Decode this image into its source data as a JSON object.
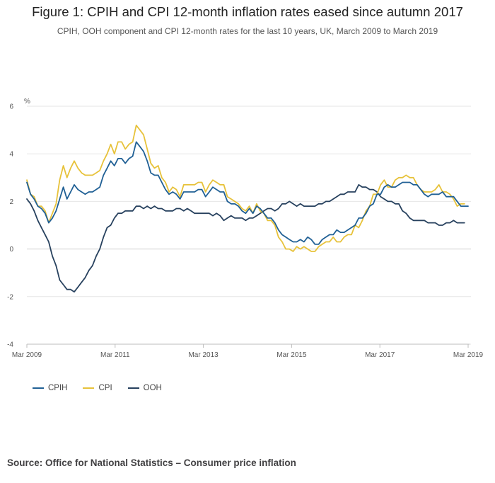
{
  "colors": {
    "CPIH": "#206095",
    "CPI": "#e7c23a",
    "OOH": "#27415e"
  },
  "chart_data": {
    "type": "line",
    "title": "Figure 1: CPIH and CPI 12-month inflation rates eased since autumn 2017",
    "subtitle": "CPIH, OOH component and CPI 12-month rates for the last 10 years, UK, March 2009 to March 2019",
    "ylabel": "%",
    "xlabel": "",
    "ylim": [
      -4,
      6
    ],
    "yticks": [
      -4,
      -2,
      0,
      2,
      4,
      6
    ],
    "xticks": [
      "Mar 2009",
      "Mar 2011",
      "Mar 2013",
      "Mar 2015",
      "Mar 2017",
      "Mar 2019"
    ],
    "x_start": "Mar 2009",
    "x_end": "Mar 2019",
    "legend_position": "bottom-left",
    "series": [
      {
        "name": "CPIH",
        "values": [
          2.8,
          2.3,
          2.1,
          1.8,
          1.7,
          1.5,
          1.1,
          1.3,
          1.6,
          2.1,
          2.6,
          2.1,
          2.4,
          2.7,
          2.5,
          2.4,
          2.3,
          2.4,
          2.4,
          2.5,
          2.6,
          3.1,
          3.4,
          3.7,
          3.5,
          3.8,
          3.8,
          3.6,
          3.8,
          3.9,
          4.5,
          4.3,
          4.1,
          3.7,
          3.2,
          3.1,
          3.1,
          2.8,
          2.5,
          2.3,
          2.4,
          2.3,
          2.1,
          2.4,
          2.4,
          2.4,
          2.4,
          2.5,
          2.5,
          2.2,
          2.4,
          2.6,
          2.5,
          2.4,
          2.4,
          2.0,
          1.9,
          1.9,
          1.8,
          1.6,
          1.5,
          1.7,
          1.5,
          1.8,
          1.7,
          1.5,
          1.3,
          1.3,
          1.1,
          0.8,
          0.6,
          0.5,
          0.4,
          0.3,
          0.3,
          0.4,
          0.3,
          0.5,
          0.4,
          0.2,
          0.2,
          0.4,
          0.5,
          0.6,
          0.6,
          0.8,
          0.7,
          0.7,
          0.8,
          0.9,
          1.0,
          1.3,
          1.3,
          1.5,
          1.8,
          1.9,
          2.3,
          2.3,
          2.6,
          2.7,
          2.6,
          2.6,
          2.7,
          2.8,
          2.8,
          2.8,
          2.7,
          2.7,
          2.5,
          2.3,
          2.2,
          2.3,
          2.3,
          2.3,
          2.4,
          2.2,
          2.2,
          2.2,
          2.0,
          1.8,
          1.8,
          1.8
        ]
      },
      {
        "name": "CPI",
        "values": [
          2.9,
          2.3,
          2.2,
          1.8,
          1.8,
          1.6,
          1.1,
          1.5,
          1.9,
          2.9,
          3.5,
          3.0,
          3.4,
          3.7,
          3.4,
          3.2,
          3.1,
          3.1,
          3.1,
          3.2,
          3.3,
          3.7,
          4.0,
          4.4,
          4.0,
          4.5,
          4.5,
          4.2,
          4.4,
          4.5,
          5.2,
          5.0,
          4.8,
          4.2,
          3.6,
          3.4,
          3.5,
          3.0,
          2.8,
          2.4,
          2.6,
          2.5,
          2.2,
          2.7,
          2.7,
          2.7,
          2.7,
          2.8,
          2.8,
          2.4,
          2.7,
          2.9,
          2.8,
          2.7,
          2.7,
          2.2,
          2.1,
          2.0,
          1.9,
          1.7,
          1.6,
          1.8,
          1.5,
          1.9,
          1.6,
          1.5,
          1.2,
          1.2,
          1.0,
          0.5,
          0.3,
          0.0,
          0.0,
          -0.1,
          0.1,
          0.0,
          0.1,
          0.0,
          -0.1,
          -0.1,
          0.1,
          0.2,
          0.3,
          0.3,
          0.5,
          0.3,
          0.3,
          0.5,
          0.6,
          0.6,
          1.0,
          0.9,
          1.2,
          1.6,
          1.8,
          2.3,
          2.3,
          2.7,
          2.9,
          2.6,
          2.6,
          2.9,
          3.0,
          3.0,
          3.1,
          3.0,
          3.0,
          2.7,
          2.5,
          2.4,
          2.4,
          2.4,
          2.5,
          2.7,
          2.4,
          2.4,
          2.3,
          2.1,
          1.8,
          1.9,
          1.9
        ]
      },
      {
        "name": "OOH",
        "values": [
          2.1,
          1.9,
          1.6,
          1.2,
          0.9,
          0.6,
          0.3,
          -0.3,
          -0.7,
          -1.3,
          -1.5,
          -1.7,
          -1.7,
          -1.8,
          -1.6,
          -1.4,
          -1.2,
          -0.9,
          -0.7,
          -0.3,
          0.0,
          0.5,
          0.9,
          1.0,
          1.3,
          1.5,
          1.5,
          1.6,
          1.6,
          1.6,
          1.8,
          1.8,
          1.7,
          1.8,
          1.7,
          1.8,
          1.7,
          1.7,
          1.6,
          1.6,
          1.6,
          1.7,
          1.7,
          1.6,
          1.7,
          1.6,
          1.5,
          1.5,
          1.5,
          1.5,
          1.5,
          1.4,
          1.5,
          1.4,
          1.2,
          1.3,
          1.4,
          1.3,
          1.3,
          1.3,
          1.2,
          1.3,
          1.3,
          1.4,
          1.5,
          1.6,
          1.7,
          1.7,
          1.6,
          1.7,
          1.9,
          1.9,
          2.0,
          1.9,
          1.8,
          1.9,
          1.8,
          1.8,
          1.8,
          1.8,
          1.9,
          1.9,
          2.0,
          2.0,
          2.1,
          2.2,
          2.3,
          2.3,
          2.4,
          2.4,
          2.4,
          2.7,
          2.6,
          2.6,
          2.5,
          2.5,
          2.4,
          2.2,
          2.1,
          2.0,
          2.0,
          1.9,
          1.9,
          1.6,
          1.5,
          1.3,
          1.2,
          1.2,
          1.2,
          1.2,
          1.1,
          1.1,
          1.1,
          1.0,
          1.0,
          1.1,
          1.1,
          1.2,
          1.1,
          1.1,
          1.1
        ]
      }
    ]
  },
  "source": "Source: Office for National Statistics – Consumer price inflation"
}
